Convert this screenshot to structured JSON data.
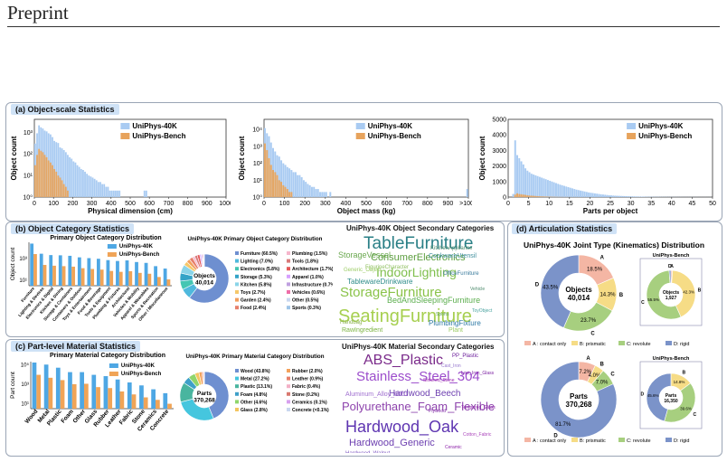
{
  "header": {
    "label": "Preprint"
  },
  "panels": {
    "a": {
      "title": "(a) Object-scale Statistics"
    },
    "b": {
      "title": "(b) Object Category Statistics"
    },
    "c": {
      "title": "(c) Part-level Material Statistics"
    },
    "d": {
      "title": "(d) Articulation Statistics"
    }
  },
  "colors": {
    "forty_k": "#a9cbf2",
    "bench": "#e7a35c",
    "bar40k": "#4ea7e4",
    "barBench": "#f0a457"
  },
  "chart_data": [
    {
      "id": "dimension",
      "type": "bar",
      "xlabel": "Physical dimension (cm)",
      "ylabel": "Object count",
      "xticks": [
        "0",
        "100",
        "200",
        "300",
        "400",
        "500",
        "600",
        "700",
        "800",
        "900",
        "1000"
      ],
      "yticks": [
        "10⁰",
        "10¹",
        "10²",
        "10³"
      ],
      "legend": [
        "UniPhys-40K",
        "UniPhys-Bench"
      ],
      "series": [
        {
          "name": "UniPhys-40K",
          "x_start": 0,
          "bin": 10,
          "values": [
            300,
            900,
            2100,
            1700,
            1500,
            1200,
            1100,
            900,
            800,
            600,
            400,
            350,
            320,
            200,
            180,
            150,
            120,
            90,
            70,
            60,
            45,
            40,
            30,
            25,
            20,
            18,
            15,
            12,
            10,
            9,
            8,
            7,
            6,
            5,
            5,
            4,
            4,
            3,
            3,
            2,
            2,
            2,
            2,
            2,
            2,
            1,
            1,
            1,
            1,
            1,
            1,
            1,
            1,
            1,
            1,
            1,
            1,
            2,
            2,
            1,
            1,
            1,
            1,
            1,
            1,
            1,
            1,
            1,
            1,
            1,
            1,
            1,
            1,
            1,
            1,
            1,
            1,
            1,
            1,
            1,
            1,
            1,
            1,
            1,
            1,
            1,
            1,
            1,
            1,
            1,
            1,
            1,
            1,
            1,
            1,
            1,
            1,
            1,
            1,
            1
          ]
        },
        {
          "name": "UniPhys-Bench",
          "x_start": 0,
          "bin": 10,
          "values": [
            30,
            90,
            170,
            140,
            120,
            90,
            70,
            50,
            40,
            30,
            20,
            15,
            10,
            8,
            6,
            4,
            3,
            2,
            1,
            1
          ]
        }
      ]
    },
    {
      "id": "mass",
      "type": "bar",
      "xlabel": "Object mass (kg)",
      "ylabel": "Object count",
      "xticks": [
        "0",
        "100",
        "200",
        "300",
        "400",
        "500",
        "600",
        "700",
        "800",
        "900",
        ">1000"
      ],
      "yticks": [
        "10⁰",
        "10¹",
        "10²",
        "10³",
        "10⁴"
      ],
      "legend": [
        "UniPhys-40K",
        "UniPhys-Bench"
      ],
      "series": [
        {
          "name": "UniPhys-40K",
          "x_start": 0,
          "bin": 10,
          "values": [
            12000,
            6000,
            4000,
            1700,
            800,
            500,
            300,
            250,
            150,
            100,
            80,
            60,
            50,
            40,
            30,
            30,
            20,
            20,
            15,
            10,
            8,
            6,
            5,
            4,
            4,
            3,
            3,
            2,
            2,
            2,
            2,
            1,
            2,
            1,
            1,
            1,
            1,
            1,
            1,
            1,
            1,
            1,
            1,
            1,
            1,
            1,
            1,
            1,
            1,
            1,
            1,
            1,
            1,
            1,
            1,
            1,
            1,
            1,
            1,
            1,
            1,
            1,
            1,
            1,
            1,
            1,
            1,
            1,
            1,
            1,
            1,
            1,
            1,
            1,
            1,
            1,
            1,
            1,
            1,
            1,
            1,
            1,
            1,
            1,
            1,
            1,
            1,
            1,
            1,
            1,
            1,
            1,
            1,
            1,
            1,
            1,
            1,
            1,
            1,
            3
          ]
        },
        {
          "name": "UniPhys-Bench",
          "x_start": 0,
          "bin": 10,
          "values": [
            1500,
            600,
            200,
            80,
            40,
            30,
            20,
            10,
            8,
            5,
            4,
            3,
            2,
            2,
            1,
            1,
            1,
            1,
            1,
            1
          ]
        }
      ]
    },
    {
      "id": "parts",
      "type": "bar",
      "xlabel": "Parts per object",
      "ylabel": "Object count",
      "xticks": [
        "0",
        "5",
        "10",
        "15",
        "20",
        "25",
        "30",
        "35",
        "40",
        "45",
        "50"
      ],
      "yticks": [
        "0",
        "1000",
        "2000",
        "3000",
        "4000",
        "5000"
      ],
      "legend": [
        "UniPhys-40K",
        "UniPhys-Bench"
      ],
      "series": [
        {
          "name": "UniPhys-40K",
          "x_start": 0,
          "bin": 0.5,
          "values": [
            0,
            0,
            200,
            3650,
            2700,
            2500,
            2300,
            2100,
            1850,
            1700,
            1600,
            1500,
            1450,
            1400,
            1350,
            1300,
            1250,
            1200,
            1150,
            1100,
            1050,
            1000,
            950,
            900,
            850,
            800,
            760,
            720,
            680,
            640,
            600,
            560,
            520,
            480,
            450,
            420,
            390,
            360,
            330,
            300,
            280,
            260,
            240,
            220,
            200,
            180,
            165,
            150,
            135,
            120,
            110,
            100,
            92,
            85,
            78,
            72,
            66,
            60,
            55,
            50,
            46,
            42,
            38,
            35,
            32,
            29,
            27,
            25,
            23,
            21,
            19,
            17,
            16,
            15,
            14,
            13,
            12,
            11,
            10,
            10,
            9,
            8,
            8,
            7,
            7,
            6,
            6,
            5,
            5,
            5,
            4,
            4,
            4,
            3,
            3,
            3,
            3,
            2,
            2,
            2
          ]
        },
        {
          "name": "UniPhys-Bench",
          "x_start": 0,
          "bin": 0.5,
          "values": [
            0,
            0,
            10,
            160,
            240,
            200,
            180,
            160,
            140,
            120,
            100,
            90,
            80,
            70,
            60,
            50,
            45,
            40,
            35,
            30,
            26,
            22,
            18,
            15,
            12,
            10,
            8,
            7,
            6,
            5,
            4,
            3,
            3,
            2,
            2,
            1,
            1,
            1,
            1,
            1
          ]
        }
      ]
    },
    {
      "id": "primary-object-dist",
      "type": "bar",
      "title": "Primary Object Category Distribution",
      "ylabel": "Object count",
      "yticks": [
        "10¹",
        "10³"
      ],
      "legend": [
        "UniPhys-40K",
        "UniPhys-Bench"
      ],
      "categories": [
        "Furniture",
        "Lighting & Devices",
        "Electronics & Digital",
        "Kitchen & Dining",
        "Storage & Containers",
        "Containers & Outdoor",
        "Toys & Entertainment",
        "Food & Beverage",
        "Tools & Equipment",
        "Plumbing & Fixtures",
        "Architectural",
        "Vehicles & Mobility",
        "Apparel & Wearables",
        "Sports & Recreation",
        "Other / Miscellaneous"
      ],
      "series": [
        {
          "name": "UniPhys-40K",
          "values": [
            24000,
            2800,
            2100,
            2000,
            1800,
            1300,
            1100,
            960,
            720,
            600,
            680,
            480,
            400,
            200,
            120
          ]
        },
        {
          "name": "UniPhys-Bench",
          "values": [
            2600,
            260,
            220,
            200,
            180,
            130,
            110,
            96,
            72,
            60,
            68,
            48,
            40,
            20,
            12
          ]
        }
      ]
    },
    {
      "id": "primary-object-donut",
      "type": "pie",
      "title": "UniPhys-40K Primary Object Category Distribution",
      "center_label": "Objects",
      "center_value": "40,014",
      "categories": [
        "Furniture (60.5%)",
        "Lighting (7.0%)",
        "Electronics (5.8%)",
        "Storage (5.3%)",
        "Kitchen (5.8%)",
        "Toys (2.7%)",
        "Garden (2.4%)",
        "Food (2.4%)",
        "Plumbing (1.5%)",
        "Tools (1.8%)",
        "Architecture (1.7%)",
        "Apparel (1.0%)",
        "Infrastructure (0.7%)",
        "Vehicles (0.6%)",
        "Other (0.5%)",
        "Sports (0.3%)"
      ],
      "values": [
        60.5,
        7.0,
        5.8,
        5.3,
        5.8,
        2.7,
        2.4,
        2.4,
        1.5,
        1.8,
        1.7,
        1.0,
        0.7,
        0.6,
        0.5,
        0.3
      ],
      "colors": [
        "#6e8fd0",
        "#4fb9dd",
        "#45c6b3",
        "#33a3c7",
        "#8ad4e8",
        "#f5c86a",
        "#f29e5c",
        "#e7806c",
        "#f6b6cc",
        "#d87a7a",
        "#e45a5a",
        "#d6a0ff",
        "#bfa0e0",
        "#ee6ea8",
        "#c9d7ef",
        "#9fc5e8"
      ]
    },
    {
      "id": "primary-material-dist",
      "type": "bar",
      "title": "Primary Material Category Distribution",
      "ylabel": "Part count",
      "yticks": [
        "10¹",
        "10³",
        "10⁵"
      ],
      "legend": [
        "UniPhys-40K",
        "UniPhys-Bench"
      ],
      "categories": [
        "Wood",
        "Metal",
        "Plastic",
        "Foam",
        "Other",
        "Glass",
        "Rubber",
        "Leather",
        "Fabric",
        "Stone",
        "Ceramics",
        "Concrete"
      ],
      "series": [
        {
          "name": "UniPhys-40K",
          "values": [
            162000,
            100000,
            48000,
            17000,
            17000,
            9000,
            6600,
            3000,
            1500,
            750,
            300,
            120
          ]
        },
        {
          "name": "UniPhys-Bench",
          "values": [
            9000,
            4500,
            2600,
            1000,
            1100,
            500,
            400,
            180,
            90,
            45,
            25,
            10
          ]
        }
      ]
    },
    {
      "id": "primary-material-donut",
      "type": "pie",
      "title": "UniPhys-40K Primary Material Category Distribution",
      "center_label": "Parts",
      "center_value": "370,268",
      "categories": [
        "Wood (43.8%)",
        "Metal (27.2%)",
        "Plastic (13.1%)",
        "Foam (4.8%)",
        "Other (4.6%)",
        "Glass (2.8%)",
        "Rubber (2.0%)",
        "Leather (0.9%)",
        "Fabric (0.4%)",
        "Stone (0.2%)",
        "Ceramics (0.1%)",
        "Concrete (<0.1%)"
      ],
      "values": [
        43.8,
        27.2,
        13.1,
        4.8,
        4.6,
        2.8,
        2.0,
        0.9,
        0.4,
        0.2,
        0.1,
        0.05
      ],
      "colors": [
        "#6e8fd0",
        "#45c6de",
        "#49b59f",
        "#3ea0c8",
        "#8fd56b",
        "#f3c560",
        "#f3a25c",
        "#e7806c",
        "#f3b0c6",
        "#d8786f",
        "#d7a0ee",
        "#c9d7ef"
      ]
    },
    {
      "id": "joint-40k-objects",
      "type": "pie",
      "title": "UniPhys-40K Joint Type (Kinematics) Distribution",
      "center_label": "Objects",
      "center_value": "40,014",
      "categories": [
        "A",
        "B",
        "C",
        "D"
      ],
      "value_labels": [
        "18.5%",
        "14.3%",
        "23.7%",
        "43.5%"
      ],
      "values": [
        18.5,
        14.3,
        23.7,
        43.5
      ],
      "colors": [
        "#f4b6a4",
        "#f6dc86",
        "#a7cf7f",
        "#7b93c9"
      ]
    },
    {
      "id": "joint-bench-objects",
      "type": "pie",
      "title": "UniPhys-Bench",
      "center_label": "Objects",
      "center_value": "1,927",
      "categories": [
        "A",
        "B",
        "C",
        "D"
      ],
      "value_labels": [
        "",
        "42.3%",
        "55.5%",
        ""
      ],
      "values": [
        1.0,
        42.3,
        55.5,
        1.2
      ],
      "colors": [
        "#f4b6a4",
        "#f6dc86",
        "#a7cf7f",
        "#7b93c9"
      ]
    },
    {
      "id": "joint-40k-parts",
      "type": "pie",
      "center_label": "Parts",
      "center_value": "370,268",
      "categories": [
        "A",
        "B",
        "C",
        "D"
      ],
      "value_labels": [
        "7.2%",
        "4.0%",
        "7.0%",
        "81.7%"
      ],
      "values": [
        7.2,
        4.0,
        7.0,
        81.7
      ],
      "colors": [
        "#f4b6a4",
        "#f6dc86",
        "#a7cf7f",
        "#7b93c9"
      ]
    },
    {
      "id": "joint-bench-parts",
      "type": "pie",
      "title": "UniPhys-Bench",
      "center_label": "Parts",
      "center_value": "16,350",
      "categories": [
        "A",
        "B",
        "C",
        "D"
      ],
      "value_labels": [
        "",
        "14.8%",
        "39.6%",
        "45.6%"
      ],
      "values": [
        0.0,
        14.8,
        39.6,
        45.6
      ],
      "colors": [
        "#f4b6a4",
        "#f6dc86",
        "#a7cf7f",
        "#7b93c9"
      ]
    }
  ],
  "joint_legend": [
    "A : contact only",
    "B: prismatic",
    "C: revolute",
    "D: rigid"
  ],
  "wordclouds": {
    "object": {
      "title": "UniPhys-40K Object Secondary Categories",
      "words": [
        "TableFurniture",
        "ConsumerElectronics",
        "IndoorLighting",
        "StorageFurniture",
        "SeatingFurniture",
        "BedAndSleepingFurniture",
        "TablewareDrinkware",
        "StorageVessel",
        "PlumbingFixture",
        "CookwareUtensil",
        "KitchenAppliance",
        "OfficeFurniture",
        "FigurineCharacter",
        "Handbag",
        "RawIngredient",
        "Plant",
        "ToyObject",
        "Sports",
        "Vehicle",
        "Generic_Object"
      ]
    },
    "material": {
      "title": "UniPhys-40K Material Secondary Categories",
      "words": [
        "ABS_Plastic",
        "Stainless_Steel_304",
        "Hardwood_Beech",
        "Polyurethane_Foam_Flexible",
        "Hardwood_Oak",
        "Hardwood_Generic",
        "Aluminum_Alloy_6061",
        "Hardwood_Walnut",
        "Cast_Iron",
        "Tempered_Glass",
        "PP_Plastic",
        "Low_Iron_Glass",
        "Sintered_Stone",
        "Cotton_Fabric",
        "Ceramic",
        "Plywood"
      ]
    }
  }
}
